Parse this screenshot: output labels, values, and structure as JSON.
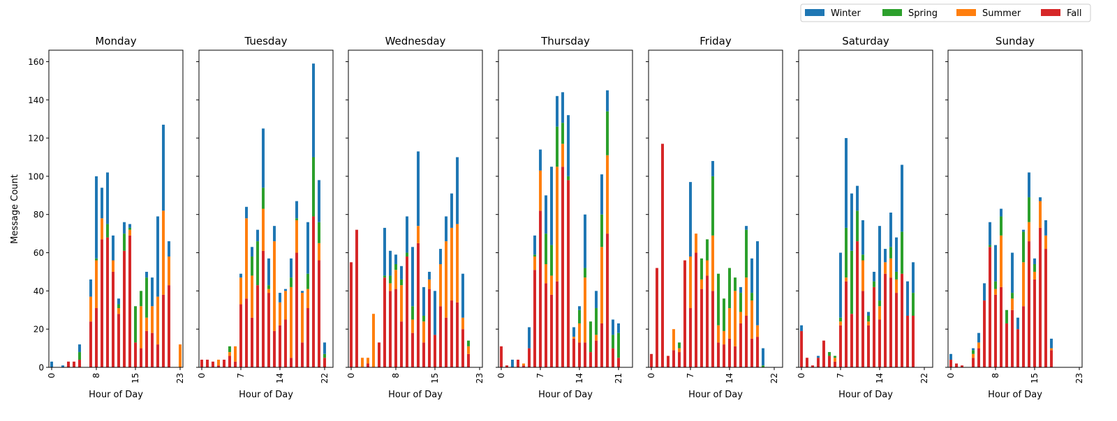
{
  "chart_data": {
    "type": "bar",
    "stacked": true,
    "ylabel": "Message Count",
    "xlabel": "Hour of Day",
    "ylim": [
      0,
      166
    ],
    "yticks": [
      0,
      20,
      40,
      60,
      80,
      100,
      120,
      140,
      160
    ],
    "legend_position": "top-right",
    "series_order": [
      "Fall",
      "Summer",
      "Spring",
      "Winter"
    ],
    "legend": [
      {
        "name": "Winter",
        "color": "#1f77b4"
      },
      {
        "name": "Spring",
        "color": "#2ca02c"
      },
      {
        "name": "Summer",
        "color": "#ff7f0e"
      },
      {
        "name": "Fall",
        "color": "#d62728"
      }
    ],
    "panels": [
      {
        "title": "Monday",
        "hours": [
          0,
          2,
          3,
          4,
          5,
          7,
          8,
          9,
          10,
          11,
          12,
          13,
          14,
          15,
          16,
          17,
          18,
          19,
          20,
          21,
          22,
          23
        ],
        "xtick_labels": [
          "0",
          "8",
          "15",
          "23"
        ],
        "Fall": [
          0,
          0,
          3,
          3,
          4,
          24,
          31,
          67,
          68,
          50,
          28,
          61,
          69,
          13,
          10,
          19,
          18,
          12,
          38,
          43,
          0,
          0
        ],
        "Summer": [
          0,
          0,
          0,
          0,
          0,
          13,
          25,
          11,
          0,
          6,
          3,
          0,
          3,
          0,
          22,
          7,
          14,
          25,
          44,
          15,
          0,
          12
        ],
        "Spring": [
          0,
          0,
          0,
          0,
          4,
          0,
          1,
          0,
          7,
          0,
          2,
          9,
          1,
          19,
          8,
          21,
          0,
          0,
          0,
          0,
          0,
          0
        ],
        "Winter": [
          3,
          1,
          0,
          0,
          4,
          9,
          43,
          16,
          27,
          13,
          3,
          6,
          2,
          0,
          0,
          3,
          15,
          42,
          45,
          8,
          0,
          0
        ]
      },
      {
        "title": "Tuesday",
        "hours": [
          0,
          1,
          2,
          3,
          4,
          5,
          6,
          7,
          8,
          9,
          10,
          11,
          12,
          13,
          14,
          15,
          16,
          17,
          18,
          19,
          20,
          21,
          22,
          23
        ],
        "xtick_labels": [
          "0",
          "7",
          "14",
          "22"
        ],
        "Fall": [
          4,
          4,
          3,
          1,
          4,
          6,
          3,
          33,
          36,
          26,
          43,
          61,
          39,
          19,
          22,
          25,
          5,
          60,
          13,
          31,
          79,
          56,
          5,
          0
        ],
        "Summer": [
          0,
          0,
          0,
          3,
          0,
          2,
          8,
          14,
          42,
          22,
          0,
          22,
          2,
          47,
          12,
          15,
          37,
          17,
          26,
          10,
          0,
          9,
          0,
          0
        ],
        "Spring": [
          0,
          0,
          0,
          0,
          0,
          3,
          0,
          0,
          0,
          10,
          23,
          11,
          2,
          0,
          0,
          0,
          5,
          1,
          0,
          8,
          31,
          11,
          2,
          0
        ],
        "Winter": [
          0,
          0,
          0,
          0,
          0,
          0,
          0,
          2,
          6,
          5,
          6,
          31,
          14,
          8,
          5,
          1,
          10,
          9,
          1,
          27,
          49,
          22,
          6,
          0
        ]
      },
      {
        "title": "Wednesday",
        "hours": [
          0,
          1,
          2,
          3,
          4,
          5,
          6,
          7,
          8,
          9,
          10,
          11,
          12,
          13,
          14,
          15,
          16,
          17,
          18,
          19,
          20,
          21,
          22,
          23
        ],
        "xtick_labels": [
          "0",
          "8",
          "15",
          "23"
        ],
        "Fall": [
          55,
          72,
          0,
          2,
          0,
          13,
          47,
          40,
          41,
          24,
          58,
          18,
          65,
          13,
          41,
          17,
          32,
          26,
          35,
          34,
          20,
          7,
          0,
          0
        ],
        "Summer": [
          0,
          0,
          5,
          3,
          28,
          0,
          0,
          4,
          10,
          19,
          0,
          7,
          9,
          11,
          5,
          0,
          22,
          40,
          38,
          41,
          6,
          4,
          0,
          0
        ],
        "Spring": [
          0,
          0,
          0,
          0,
          0,
          0,
          1,
          4,
          3,
          3,
          2,
          7,
          0,
          3,
          0,
          0,
          0,
          0,
          0,
          0,
          0,
          3,
          0,
          0
        ],
        "Winter": [
          0,
          0,
          0,
          0,
          0,
          0,
          25,
          13,
          5,
          7,
          19,
          31,
          39,
          15,
          4,
          23,
          8,
          13,
          18,
          35,
          23,
          0,
          0,
          0
        ]
      },
      {
        "title": "Thursday",
        "hours": [
          0,
          1,
          2,
          3,
          4,
          5,
          6,
          7,
          8,
          9,
          10,
          11,
          12,
          13,
          14,
          15,
          16,
          17,
          18,
          19,
          20,
          21,
          22,
          23
        ],
        "xtick_labels": [
          "0",
          "7",
          "14",
          "21"
        ],
        "Fall": [
          11,
          1,
          0,
          4,
          1,
          10,
          51,
          82,
          44,
          38,
          45,
          105,
          98,
          15,
          13,
          13,
          8,
          14,
          23,
          70,
          10,
          5,
          0,
          0
        ],
        "Summer": [
          0,
          0,
          0,
          0,
          1,
          0,
          7,
          21,
          10,
          10,
          60,
          12,
          0,
          1,
          10,
          34,
          0,
          3,
          40,
          41,
          0,
          0,
          0,
          0
        ],
        "Spring": [
          0,
          0,
          0,
          0,
          0,
          0,
          1,
          0,
          16,
          16,
          21,
          11,
          2,
          0,
          7,
          5,
          16,
          14,
          17,
          23,
          7,
          13,
          0,
          0
        ],
        "Winter": [
          0,
          0,
          4,
          0,
          0,
          11,
          10,
          11,
          20,
          41,
          16,
          16,
          32,
          5,
          2,
          28,
          0,
          9,
          21,
          11,
          8,
          5,
          0,
          0
        ]
      },
      {
        "title": "Friday",
        "hours": [
          0,
          1,
          2,
          3,
          4,
          5,
          6,
          7,
          8,
          9,
          10,
          11,
          12,
          13,
          14,
          15,
          16,
          17,
          18,
          19,
          20,
          21,
          22,
          23
        ],
        "xtick_labels": [
          "0",
          "7",
          "14",
          "22"
        ],
        "Fall": [
          7,
          52,
          117,
          6,
          9,
          8,
          56,
          31,
          60,
          41,
          48,
          40,
          13,
          12,
          15,
          11,
          23,
          27,
          15,
          16,
          0,
          0,
          0,
          0
        ],
        "Summer": [
          0,
          0,
          0,
          0,
          11,
          2,
          0,
          27,
          10,
          5,
          8,
          29,
          9,
          7,
          16,
          29,
          6,
          20,
          20,
          6,
          0,
          0,
          0,
          0
        ],
        "Spring": [
          0,
          0,
          0,
          0,
          0,
          3,
          0,
          0,
          0,
          11,
          11,
          31,
          27,
          17,
          21,
          7,
          10,
          25,
          4,
          0,
          1,
          0,
          0,
          0
        ],
        "Winter": [
          0,
          0,
          0,
          0,
          0,
          0,
          0,
          39,
          0,
          0,
          0,
          8,
          0,
          0,
          0,
          0,
          3,
          2,
          18,
          44,
          9,
          0,
          0,
          0
        ]
      },
      {
        "title": "Saturday",
        "hours": [
          0,
          1,
          2,
          3,
          4,
          5,
          6,
          7,
          8,
          9,
          10,
          11,
          12,
          13,
          14,
          15,
          16,
          17,
          18,
          19,
          20,
          21,
          22,
          23
        ],
        "xtick_labels": [
          "0",
          "7",
          "14",
          "22"
        ],
        "Fall": [
          19,
          5,
          1,
          5,
          14,
          6,
          3,
          22,
          45,
          28,
          66,
          40,
          22,
          42,
          25,
          49,
          47,
          39,
          49,
          27,
          27,
          0,
          0,
          0
        ],
        "Summer": [
          0,
          0,
          0,
          0,
          0,
          0,
          2,
          2,
          2,
          0,
          0,
          16,
          2,
          0,
          7,
          6,
          10,
          7,
          0,
          0,
          0,
          0,
          0,
          0
        ],
        "Spring": [
          0,
          0,
          0,
          0,
          0,
          2,
          1,
          2,
          26,
          33,
          16,
          3,
          3,
          3,
          3,
          0,
          6,
          4,
          22,
          0,
          12,
          0,
          0,
          0
        ],
        "Winter": [
          3,
          0,
          0,
          1,
          0,
          0,
          0,
          34,
          47,
          30,
          13,
          18,
          2,
          5,
          39,
          7,
          18,
          18,
          35,
          18,
          16,
          0,
          0,
          0
        ]
      },
      {
        "title": "Sunday",
        "hours": [
          0,
          1,
          2,
          3,
          4,
          5,
          6,
          7,
          8,
          9,
          10,
          11,
          12,
          13,
          14,
          15,
          16,
          17,
          18,
          19,
          20,
          21,
          22,
          23
        ],
        "xtick_labels": [
          "0",
          "8",
          "15",
          "23"
        ],
        "Fall": [
          4,
          2,
          1,
          0,
          5,
          10,
          35,
          63,
          38,
          42,
          23,
          30,
          20,
          32,
          66,
          46,
          73,
          62,
          9,
          0,
          0,
          0,
          0,
          0
        ],
        "Summer": [
          0,
          0,
          0,
          0,
          2,
          3,
          0,
          0,
          3,
          27,
          0,
          6,
          0,
          23,
          10,
          4,
          14,
          7,
          1,
          0,
          0,
          0,
          0,
          0
        ],
        "Spring": [
          0,
          0,
          0,
          0,
          2,
          0,
          0,
          1,
          4,
          10,
          7,
          3,
          0,
          16,
          13,
          4,
          0,
          0,
          0,
          0,
          0,
          0,
          0,
          0
        ],
        "Winter": [
          3,
          0,
          0,
          0,
          1,
          5,
          9,
          12,
          19,
          4,
          0,
          21,
          6,
          1,
          13,
          3,
          2,
          8,
          5,
          0,
          0,
          0,
          0,
          0
        ]
      }
    ]
  }
}
